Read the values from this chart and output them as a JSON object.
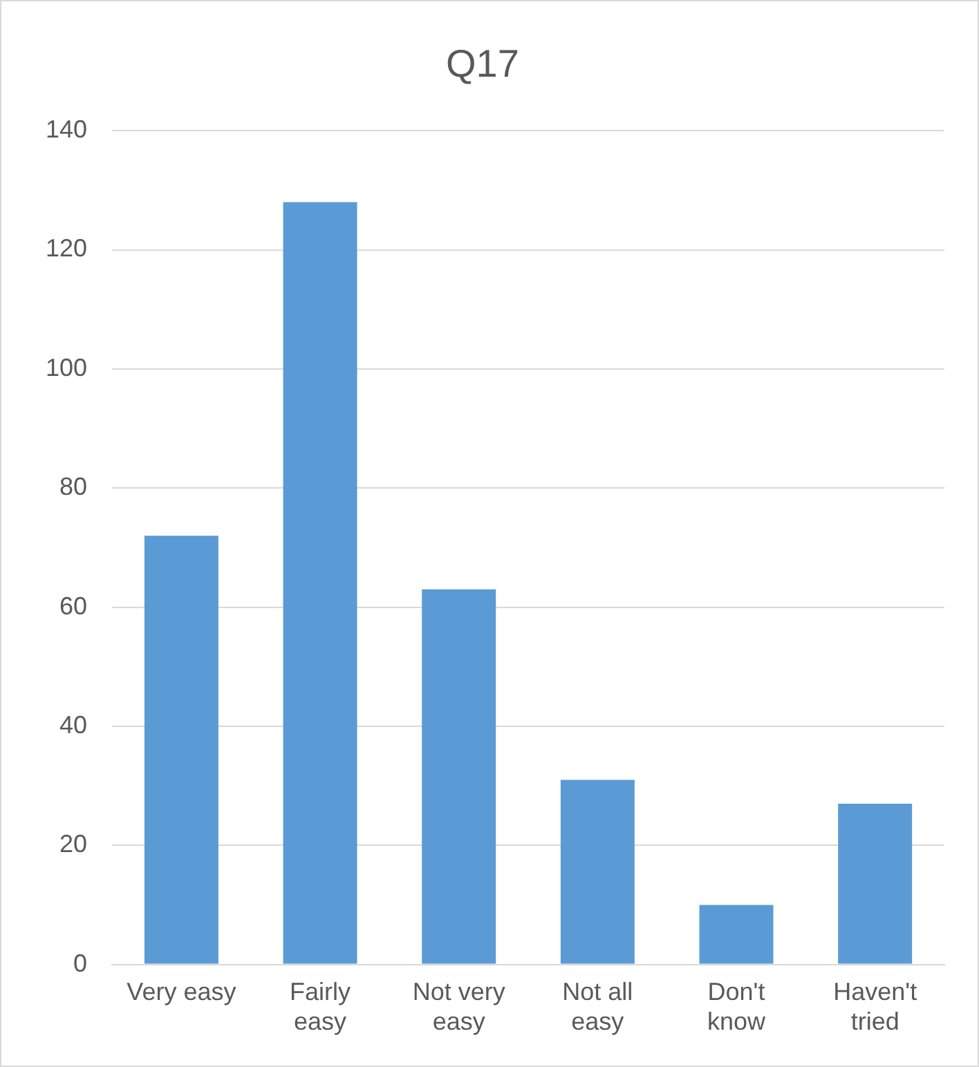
{
  "chart_data": {
    "type": "bar",
    "title": "Q17",
    "categories": [
      "Very easy",
      "Fairly easy",
      "Not very easy",
      "Not all easy",
      "Don't know",
      "Haven't tried"
    ],
    "values": [
      72,
      128,
      63,
      31,
      10,
      27
    ],
    "color": "#5b9bd5",
    "ylim": [
      0,
      140
    ],
    "yticks": [
      0,
      20,
      40,
      60,
      80,
      100,
      120,
      140
    ],
    "grid": "y",
    "legend": false
  }
}
